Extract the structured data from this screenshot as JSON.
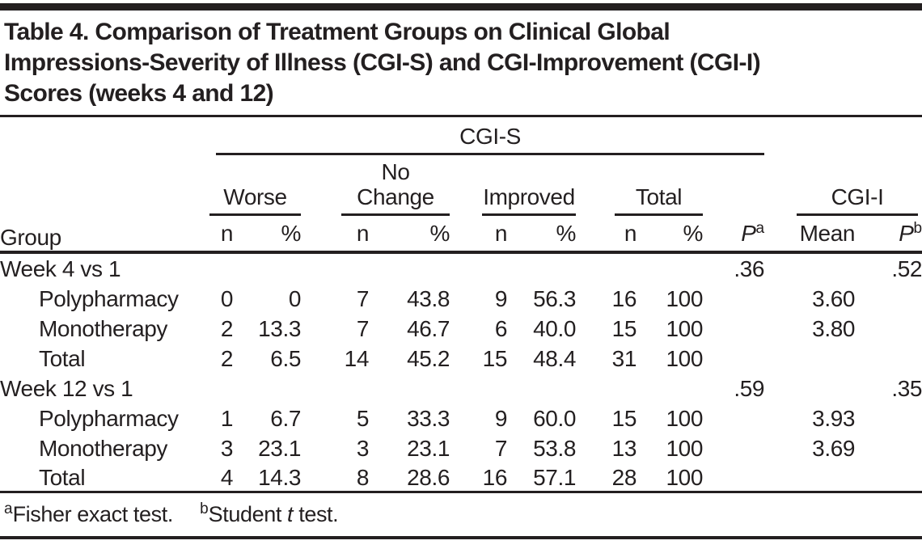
{
  "colors": {
    "ink": "#231f20"
  },
  "title_lines": [
    "Table 4. Comparison of Treatment Groups on Clinical Global",
    "Impressions-Severity of Illness (CGI-S) and CGI-Improvement (CGI-I)",
    "Scores (weeks 4 and 12)"
  ],
  "header": {
    "cgis_label": "CGI-S",
    "cgii_label": "CGI-I",
    "group_label": "Group",
    "subgroups": [
      {
        "line1": "Worse",
        "line2": ""
      },
      {
        "line1": "No",
        "line2": "Change"
      },
      {
        "line1": "Improved",
        "line2": ""
      },
      {
        "line1": "Total",
        "line2": ""
      }
    ],
    "n_label": "n",
    "pct_label": "%",
    "p_label": "P",
    "p_sup_a": "a",
    "p_sup_b": "b",
    "mean_label": "Mean"
  },
  "columns_order": [
    "worse_n",
    "worse_pct",
    "nochange_n",
    "nochange_pct",
    "improved_n",
    "improved_pct",
    "total_n",
    "total_pct",
    "p_a",
    "cgii_mean",
    "p_b"
  ],
  "rows": [
    {
      "label": "Week 4 vs 1",
      "indent": false,
      "cells": [
        "",
        "",
        "",
        "",
        "",
        "",
        "",
        "",
        ".36",
        "",
        ".52"
      ]
    },
    {
      "label": "Polypharmacy",
      "indent": true,
      "cells": [
        "0",
        "0",
        "7",
        "43.8",
        "9",
        "56.3",
        "16",
        "100",
        "",
        "3.60",
        ""
      ]
    },
    {
      "label": "Monotherapy",
      "indent": true,
      "cells": [
        "2",
        "13.3",
        "7",
        "46.7",
        "6",
        "40.0",
        "15",
        "100",
        "",
        "3.80",
        ""
      ]
    },
    {
      "label": "Total",
      "indent": true,
      "cells": [
        "2",
        "6.5",
        "14",
        "45.2",
        "15",
        "48.4",
        "31",
        "100",
        "",
        "",
        ""
      ]
    },
    {
      "label": "Week 12 vs 1",
      "indent": false,
      "cells": [
        "",
        "",
        "",
        "",
        "",
        "",
        "",
        "",
        ".59",
        "",
        ".35"
      ]
    },
    {
      "label": "Polypharmacy",
      "indent": true,
      "cells": [
        "1",
        "6.7",
        "5",
        "33.3",
        "9",
        "60.0",
        "15",
        "100",
        "",
        "3.93",
        ""
      ]
    },
    {
      "label": "Monotherapy",
      "indent": true,
      "cells": [
        "3",
        "23.1",
        "3",
        "23.1",
        "7",
        "53.8",
        "13",
        "100",
        "",
        "3.69",
        ""
      ]
    },
    {
      "label": "Total",
      "indent": true,
      "cells": [
        "4",
        "14.3",
        "8",
        "28.6",
        "16",
        "57.1",
        "28",
        "100",
        "",
        "",
        ""
      ]
    }
  ],
  "footnote": {
    "a_marker": "a",
    "a_text": "Fisher exact test.",
    "b_marker": "b",
    "b_pre": "Student ",
    "b_italic": "t",
    "b_post": " test."
  }
}
